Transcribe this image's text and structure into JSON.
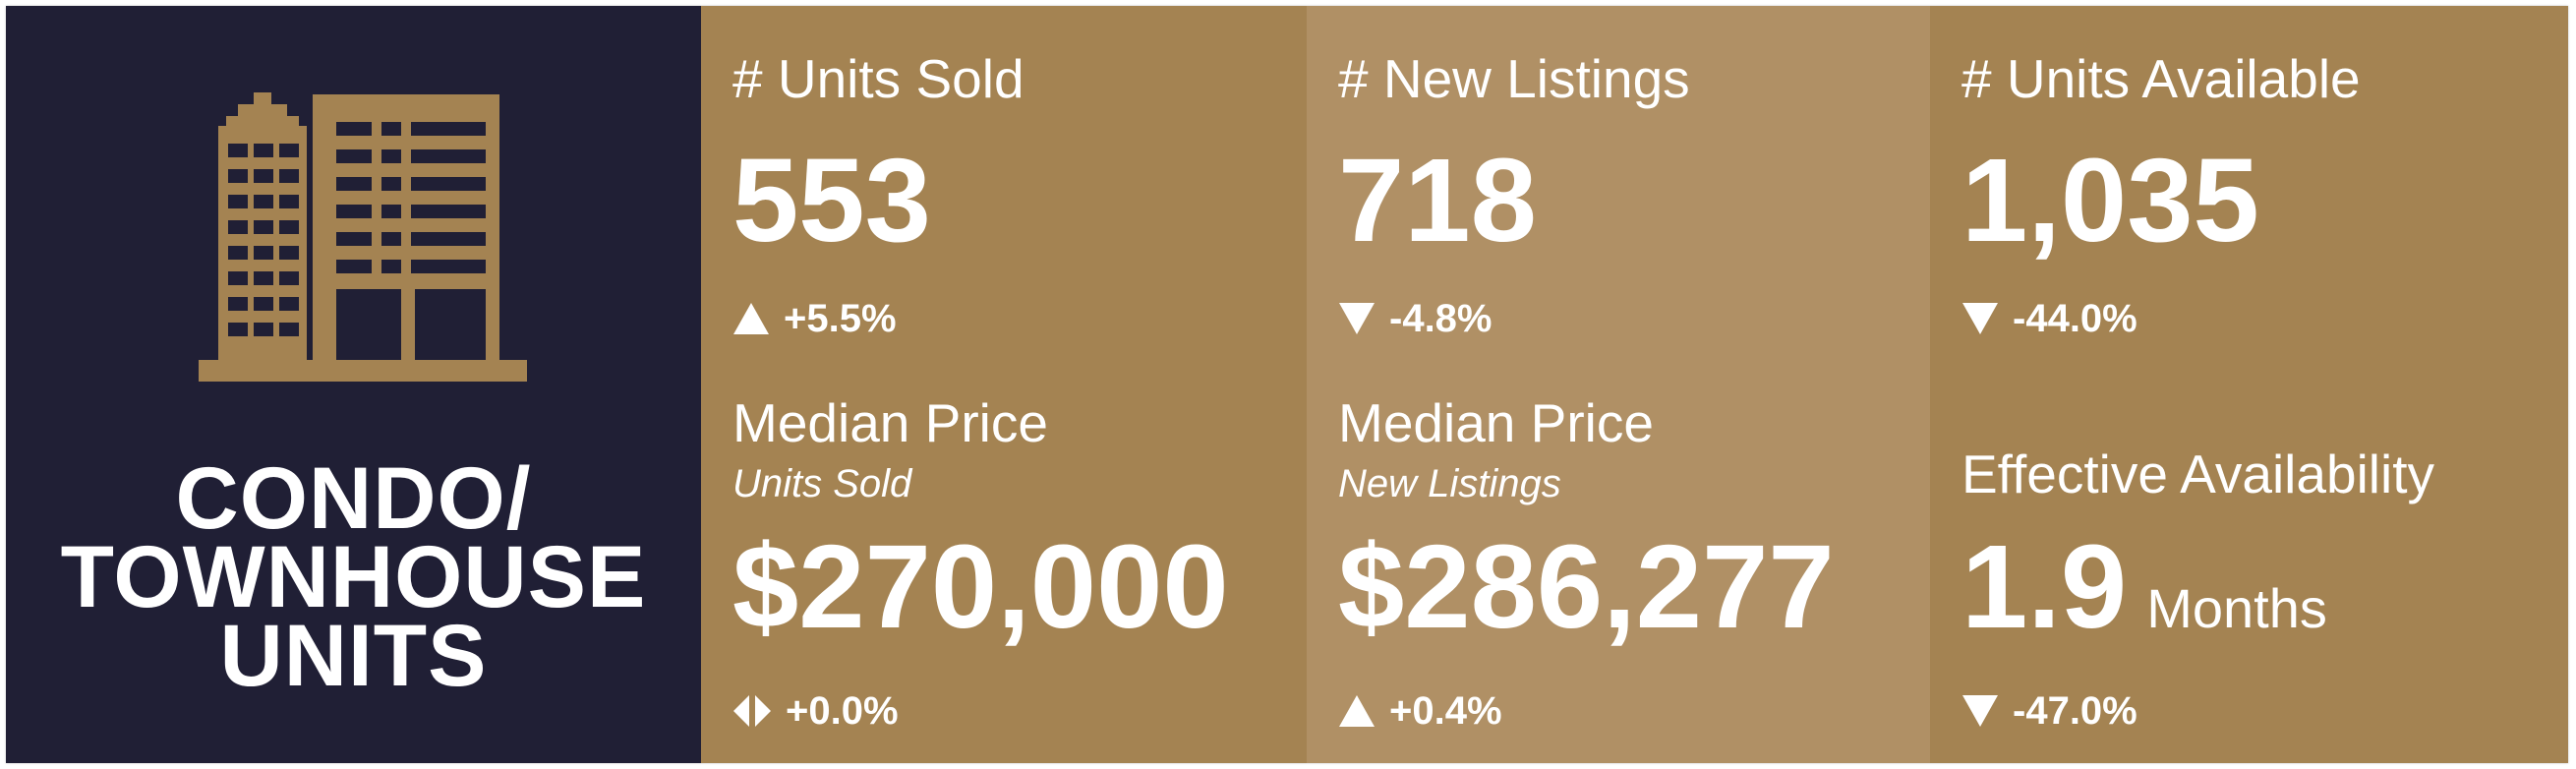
{
  "brand": {
    "icon": "building-icon",
    "title_lines": [
      "CONDO/",
      "TOWNHOUSE",
      "UNITS"
    ],
    "colors": {
      "background": "#201f35",
      "icon": "#a48352"
    }
  },
  "colors": {
    "panel": "#a48352",
    "panel_alt": "#b09065",
    "text": "#ffffff"
  },
  "metrics": {
    "units_sold": {
      "label": "# Units Sold",
      "value": "553",
      "change": {
        "direction": "up",
        "icon": "triangle-up-icon",
        "text": "+5.5%"
      }
    },
    "new_listings": {
      "label": "# New Listings",
      "value": "718",
      "change": {
        "direction": "down",
        "icon": "triangle-down-icon",
        "text": "-4.8%"
      }
    },
    "units_available": {
      "label": "# Units Available",
      "value": "1,035",
      "change": {
        "direction": "down",
        "icon": "triangle-down-icon",
        "text": "-44.0%"
      }
    },
    "median_price_sold": {
      "label": "Median Price",
      "sublabel": "Units Sold",
      "value": "$270,000",
      "change": {
        "direction": "flat",
        "icon": "left-right-arrows-icon",
        "text": "+0.0%"
      }
    },
    "median_price_listings": {
      "label": "Median Price",
      "sublabel": "New Listings",
      "value": "$286,277",
      "change": {
        "direction": "up",
        "icon": "triangle-up-icon",
        "text": "+0.4%"
      }
    },
    "effective_availability": {
      "label": "Effective Availability",
      "value": "1.9",
      "unit": "Months",
      "change": {
        "direction": "down",
        "icon": "triangle-down-icon",
        "text": "-47.0%"
      }
    }
  }
}
